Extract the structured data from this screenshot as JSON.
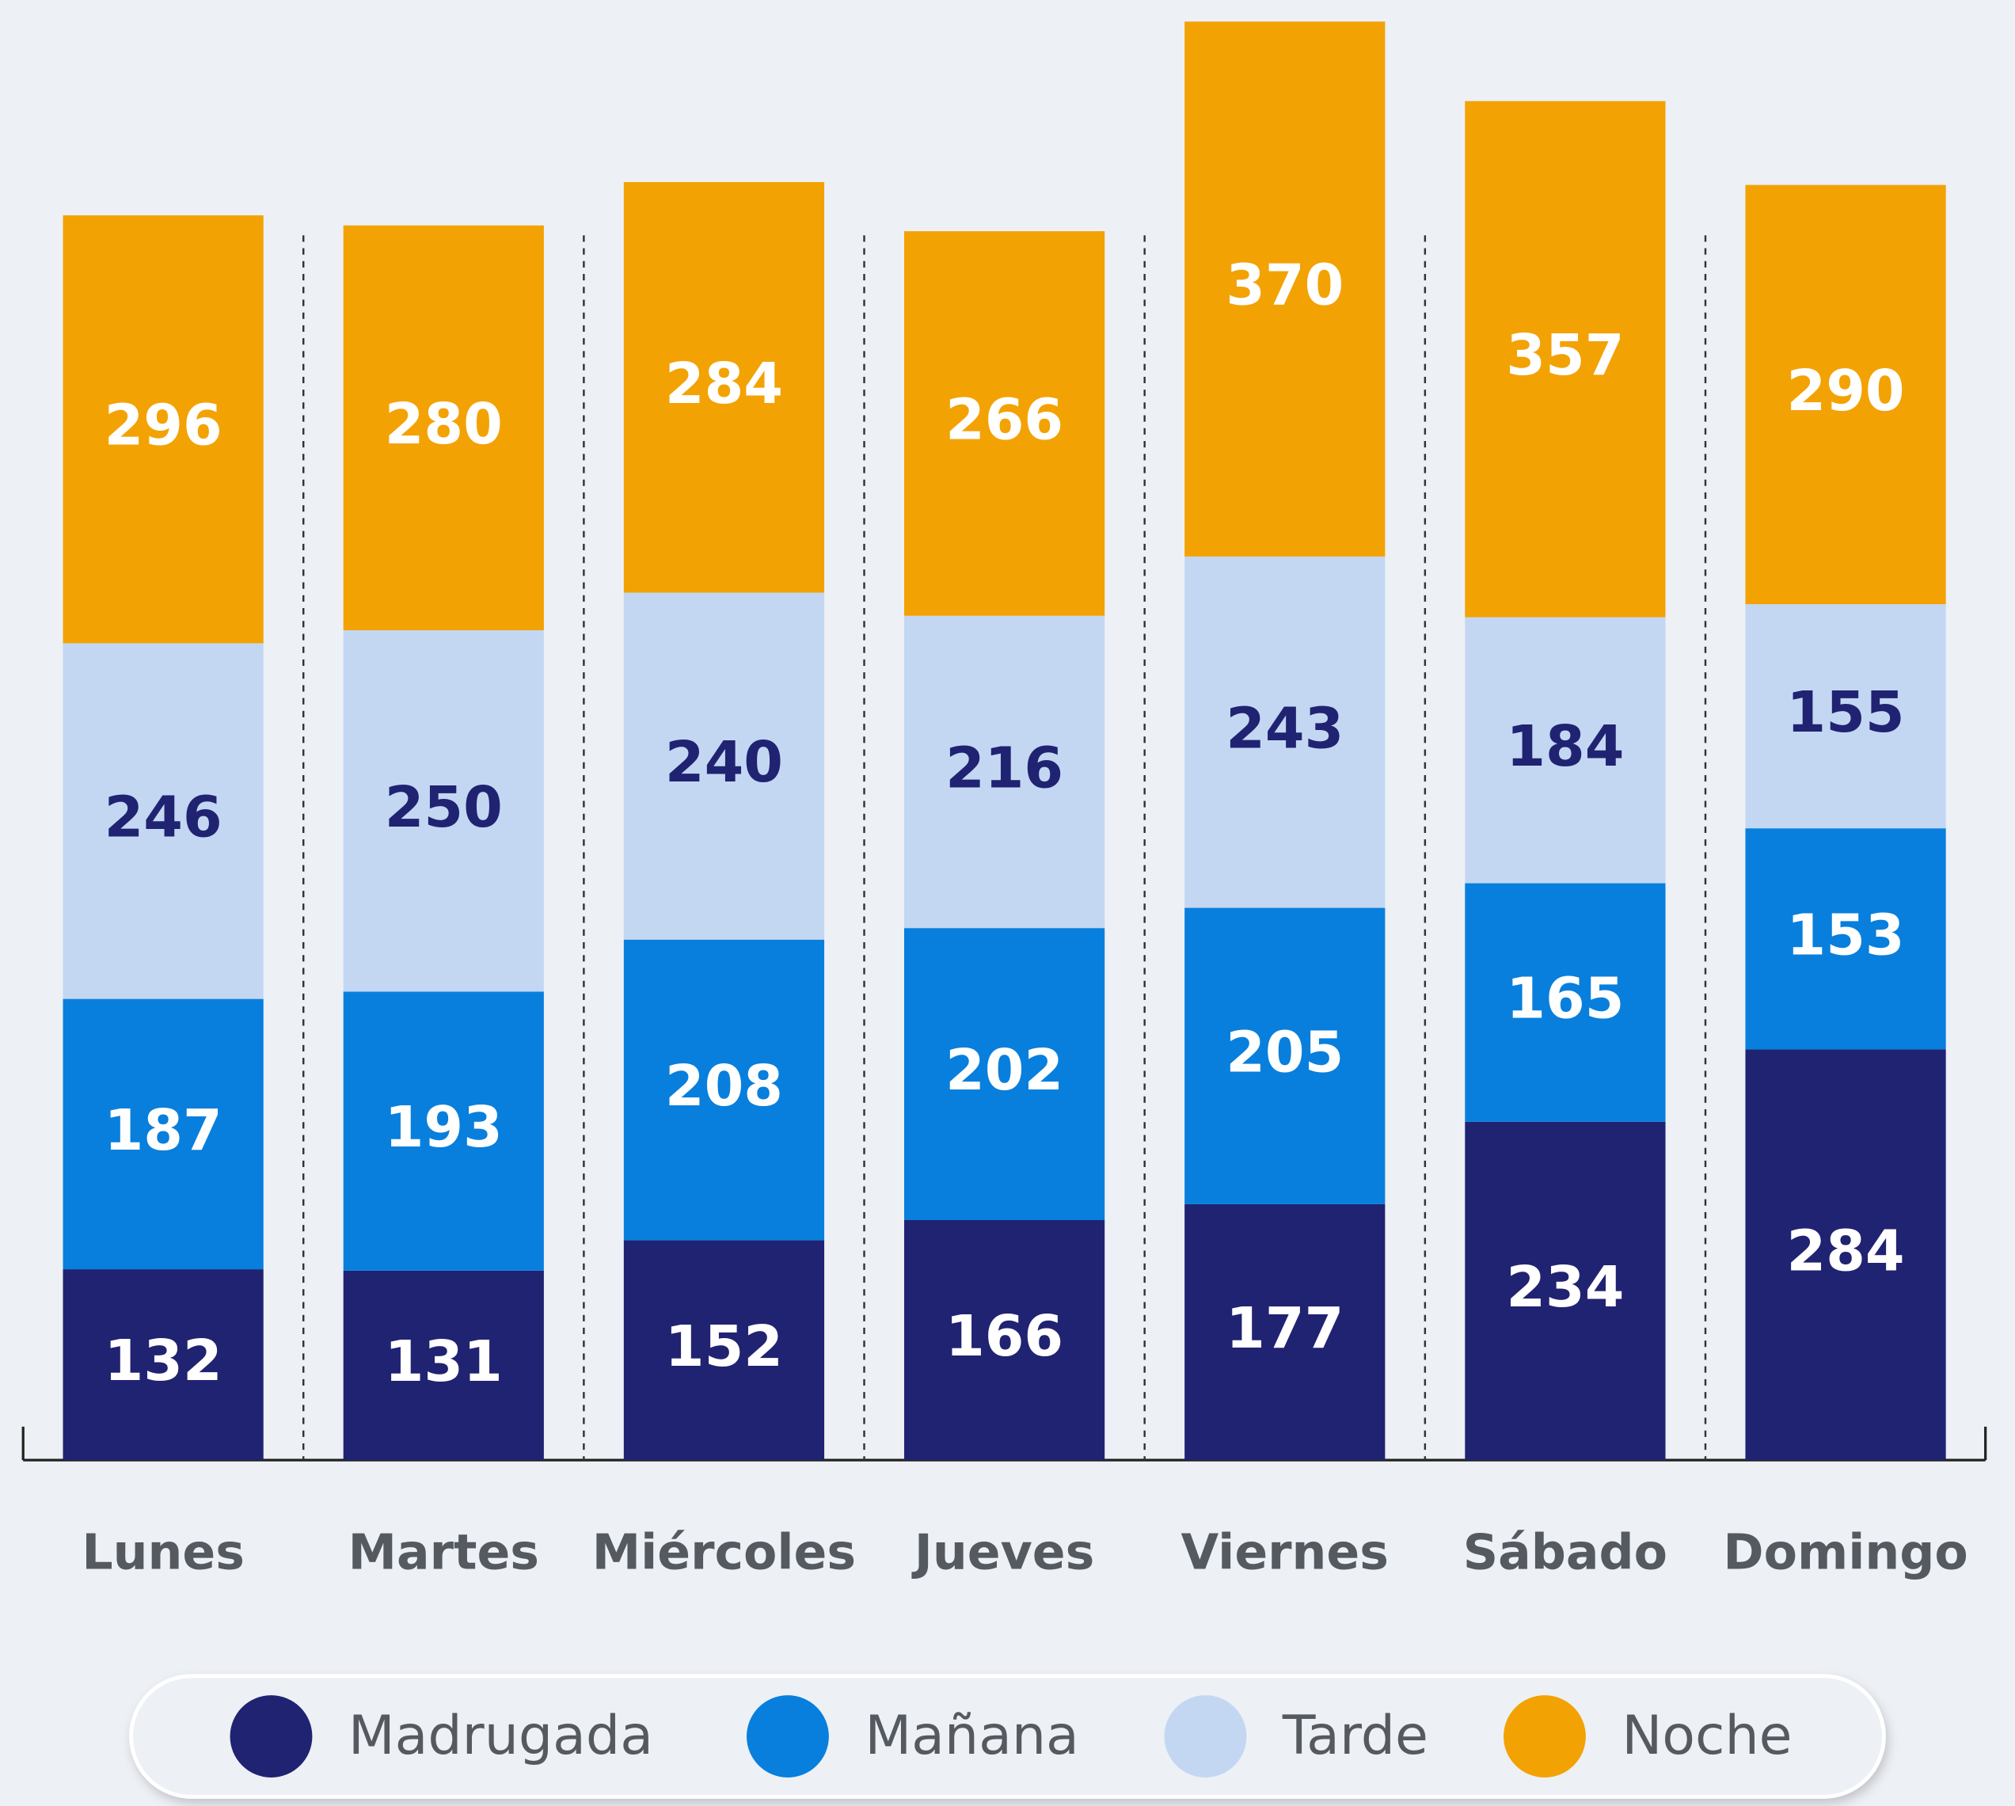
{
  "chart_data": {
    "type": "bar",
    "stacked": true,
    "categories": [
      "Lunes",
      "Martes",
      "Miércoles",
      "Jueves",
      "Viernes",
      "Sábado",
      "Domingo"
    ],
    "series": [
      {
        "name": "Madrugada",
        "color": "#202371",
        "values": [
          132,
          131,
          152,
          166,
          177,
          234,
          284
        ]
      },
      {
        "name": "Mañana",
        "color": "#087fdd",
        "values": [
          187,
          193,
          208,
          202,
          205,
          165,
          153
        ]
      },
      {
        "name": "Tarde",
        "color": "#c3d7f3",
        "values": [
          246,
          250,
          240,
          216,
          243,
          184,
          155
        ]
      },
      {
        "name": "Noche",
        "color": "#f3a204",
        "values": [
          296,
          280,
          284,
          266,
          370,
          357,
          290
        ]
      }
    ],
    "ylim": [
      0,
      1000
    ],
    "legend": "bottom"
  }
}
